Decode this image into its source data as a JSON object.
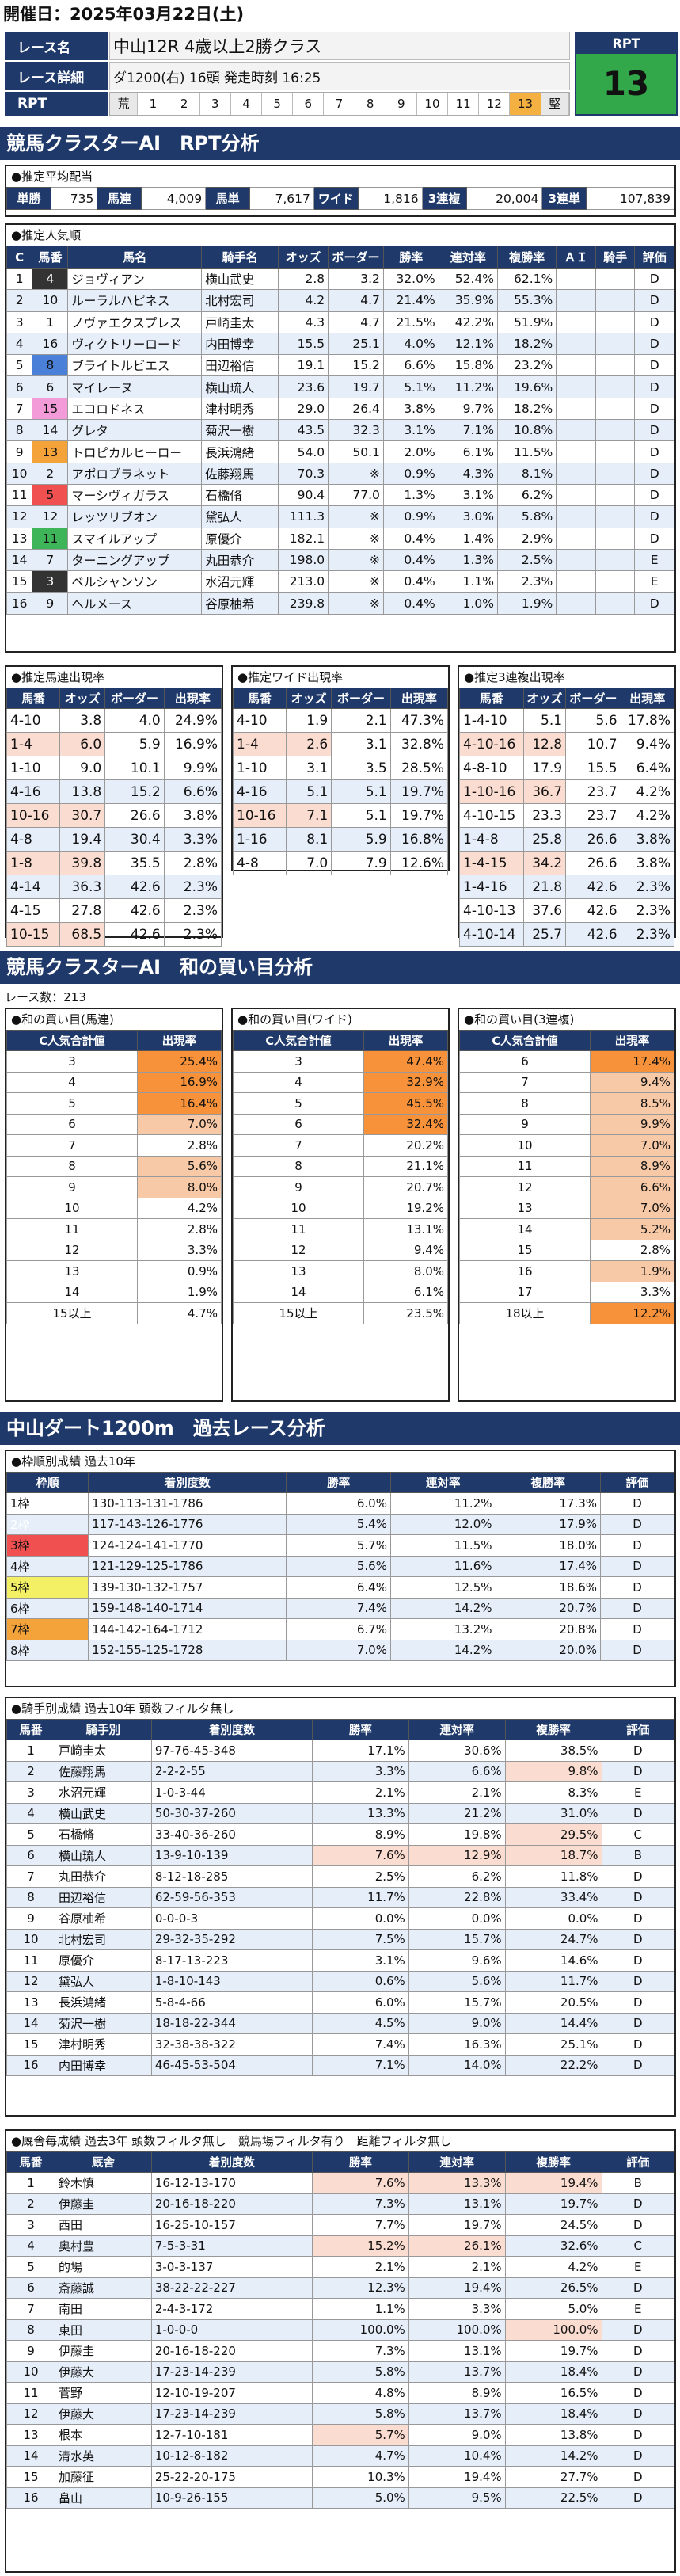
{
  "header": {
    "date": "開催日：2025年03月22日(土)"
  },
  "race": {
    "name_label": "レース名",
    "name": "中山12R 4歳以上2勝クラス",
    "detail_label": "レース詳細",
    "detail": "ダ1200(右)  16頭  発走時刻 16:25",
    "rpt_label": "RPT",
    "rpt_title": "RPT",
    "rpt_value": "13",
    "rpt_cells": [
      "荒",
      "1",
      "2",
      "3",
      "4",
      "5",
      "6",
      "7",
      "8",
      "9",
      "10",
      "11",
      "12",
      "13",
      "堅"
    ],
    "rpt_highlight": "13"
  },
  "banner1": "競馬クラスターAI　RPT分析",
  "payout": {
    "title": "●推定平均配当",
    "items": [
      [
        "単勝",
        "735"
      ],
      [
        "馬連",
        "4,009"
      ],
      [
        "馬単",
        "7,617"
      ],
      [
        "ワイド",
        "1,816"
      ],
      [
        "3連複",
        "20,004"
      ],
      [
        "3連単",
        "107,839"
      ]
    ]
  },
  "popularity": {
    "title": "●推定人気順",
    "headers": [
      "C",
      "馬番",
      "馬名",
      "騎手名",
      "オッズ",
      "ボーダー",
      "勝率",
      "連対率",
      "複勝率",
      "ＡＩ",
      "騎手",
      "評価"
    ],
    "rows": [
      [
        "1",
        "4",
        "ジョヴィアン",
        "横山武史",
        "2.8",
        "3.2",
        "32.0%",
        "52.4%",
        "62.1%",
        "",
        "",
        "D"
      ],
      [
        "2",
        "10",
        "ルーラルハピネス",
        "北村宏司",
        "4.2",
        "4.7",
        "21.4%",
        "35.9%",
        "55.3%",
        "",
        "",
        "D"
      ],
      [
        "3",
        "1",
        "ノヴァエクスプレス",
        "戸崎圭太",
        "4.3",
        "4.7",
        "21.5%",
        "42.2%",
        "51.9%",
        "",
        "",
        "D"
      ],
      [
        "4",
        "16",
        "ヴィクトリーロード",
        "内田博幸",
        "15.5",
        "25.1",
        "4.0%",
        "12.1%",
        "18.2%",
        "",
        "",
        "D"
      ],
      [
        "5",
        "8",
        "ブライトルビエス",
        "田辺裕信",
        "19.1",
        "15.2",
        "6.6%",
        "15.8%",
        "23.2%",
        "",
        "",
        "D"
      ],
      [
        "6",
        "6",
        "マイレーヌ",
        "横山琉人",
        "23.6",
        "19.7",
        "5.1%",
        "11.2%",
        "19.6%",
        "",
        "",
        "D"
      ],
      [
        "7",
        "15",
        "エコロドネス",
        "津村明秀",
        "29.0",
        "26.4",
        "3.8%",
        "9.7%",
        "18.2%",
        "",
        "",
        "D"
      ],
      [
        "8",
        "14",
        "グレタ",
        "菊沢一樹",
        "43.5",
        "32.3",
        "3.1%",
        "7.1%",
        "10.8%",
        "",
        "",
        "D"
      ],
      [
        "9",
        "13",
        "トロピカルヒーロー",
        "長浜鴻緒",
        "54.0",
        "50.1",
        "2.0%",
        "6.1%",
        "11.5%",
        "",
        "",
        "D"
      ],
      [
        "10",
        "2",
        "アポロブラネット",
        "佐藤翔馬",
        "70.3",
        "※",
        "0.9%",
        "4.3%",
        "8.1%",
        "",
        "",
        "D"
      ],
      [
        "11",
        "5",
        "マーシヴィガラス",
        "石橋脩",
        "90.4",
        "77.0",
        "1.3%",
        "3.1%",
        "6.2%",
        "",
        "",
        "D"
      ],
      [
        "12",
        "12",
        "レッツリブオン",
        "黛弘人",
        "111.3",
        "※",
        "0.9%",
        "3.0%",
        "5.8%",
        "",
        "",
        "D"
      ],
      [
        "13",
        "11",
        "スマイルアップ",
        "原優介",
        "182.1",
        "※",
        "0.4%",
        "1.4%",
        "2.9%",
        "",
        "",
        "D"
      ],
      [
        "14",
        "7",
        "ターニングアップ",
        "丸田恭介",
        "198.0",
        "※",
        "0.4%",
        "1.3%",
        "2.5%",
        "",
        "",
        "E"
      ],
      [
        "15",
        "3",
        "ベルシャンソン",
        "水沼元輝",
        "213.0",
        "※",
        "0.4%",
        "1.1%",
        "2.3%",
        "",
        "",
        "E"
      ],
      [
        "16",
        "9",
        "ヘルメース",
        "谷原柚希",
        "239.8",
        "※",
        "0.4%",
        "1.0%",
        "1.9%",
        "",
        "",
        "D"
      ]
    ]
  },
  "umaren": {
    "title": "●推定馬連出現率",
    "headers": [
      "馬番",
      "オッズ",
      "ボーダー",
      "出現率"
    ],
    "rows": [
      [
        "4-10",
        "3.8",
        "4.0",
        "24.9%"
      ],
      [
        "1-4",
        "6.0",
        "5.9",
        "16.9%"
      ],
      [
        "1-10",
        "9.0",
        "10.1",
        "9.9%"
      ],
      [
        "4-16",
        "13.8",
        "15.2",
        "6.6%"
      ],
      [
        "10-16",
        "30.7",
        "26.6",
        "3.8%"
      ],
      [
        "4-8",
        "19.4",
        "30.4",
        "3.3%"
      ],
      [
        "1-8",
        "39.8",
        "35.5",
        "2.8%"
      ],
      [
        "4-14",
        "36.3",
        "42.6",
        "2.3%"
      ],
      [
        "4-15",
        "27.8",
        "42.6",
        "2.3%"
      ],
      [
        "10-15",
        "68.5",
        "42.6",
        "2.3%"
      ]
    ]
  },
  "wide": {
    "title": "●推定ワイド出現率",
    "headers": [
      "馬番",
      "オッズ",
      "ボーダー",
      "出現率"
    ],
    "rows": [
      [
        "4-10",
        "1.9",
        "2.1",
        "47.3%"
      ],
      [
        "1-4",
        "2.6",
        "3.1",
        "32.8%"
      ],
      [
        "1-10",
        "3.1",
        "3.5",
        "28.5%"
      ],
      [
        "4-16",
        "5.1",
        "5.1",
        "19.7%"
      ],
      [
        "10-16",
        "7.1",
        "5.1",
        "19.7%"
      ],
      [
        "1-16",
        "8.1",
        "5.9",
        "16.8%"
      ],
      [
        "4-8",
        "7.0",
        "7.9",
        "12.6%"
      ]
    ]
  },
  "trio": {
    "title": "●推定3連複出現率",
    "headers": [
      "馬番",
      "オッズ",
      "ボーダー",
      "出現率"
    ],
    "rows": [
      [
        "1-4-10",
        "5.1",
        "5.6",
        "17.8%"
      ],
      [
        "4-10-16",
        "12.8",
        "10.7",
        "9.4%"
      ],
      [
        "4-8-10",
        "17.9",
        "15.5",
        "6.4%"
      ],
      [
        "1-10-16",
        "36.7",
        "23.7",
        "4.2%"
      ],
      [
        "4-10-15",
        "23.3",
        "23.7",
        "4.2%"
      ],
      [
        "1-4-8",
        "25.8",
        "26.6",
        "3.8%"
      ],
      [
        "1-4-15",
        "34.2",
        "26.6",
        "3.8%"
      ],
      [
        "1-4-16",
        "21.8",
        "42.6",
        "2.3%"
      ],
      [
        "4-10-13",
        "37.6",
        "42.6",
        "2.3%"
      ],
      [
        "4-10-14",
        "25.7",
        "42.6",
        "2.3%"
      ]
    ]
  },
  "banner2": "競馬クラスターAI　和の買い目分析",
  "race_count": "レース数：213",
  "sum_umaren": {
    "title": "●和の買い目(馬連)",
    "headers": [
      "C人気合計値",
      "出現率"
    ],
    "rows": [
      [
        "3",
        "25.4%"
      ],
      [
        "4",
        "16.9%"
      ],
      [
        "5",
        "16.4%"
      ],
      [
        "6",
        "7.0%"
      ],
      [
        "7",
        "2.8%"
      ],
      [
        "8",
        "5.6%"
      ],
      [
        "9",
        "8.0%"
      ],
      [
        "10",
        "4.2%"
      ],
      [
        "11",
        "2.8%"
      ],
      [
        "12",
        "3.3%"
      ],
      [
        "13",
        "0.9%"
      ],
      [
        "14",
        "1.9%"
      ],
      [
        "15以上",
        "4.7%"
      ]
    ]
  },
  "sum_wide": {
    "title": "●和の買い目(ワイド)",
    "headers": [
      "C人気合計値",
      "出現率"
    ],
    "rows": [
      [
        "3",
        "47.4%"
      ],
      [
        "4",
        "32.9%"
      ],
      [
        "5",
        "45.5%"
      ],
      [
        "6",
        "32.4%"
      ],
      [
        "7",
        "20.2%"
      ],
      [
        "8",
        "21.1%"
      ],
      [
        "9",
        "20.7%"
      ],
      [
        "10",
        "19.2%"
      ],
      [
        "11",
        "13.1%"
      ],
      [
        "12",
        "9.4%"
      ],
      [
        "13",
        "8.0%"
      ],
      [
        "14",
        "6.1%"
      ],
      [
        "15以上",
        "23.5%"
      ]
    ]
  },
  "sum_trio": {
    "title": "●和の買い目(3連複)",
    "headers": [
      "C人気合計値",
      "出現率"
    ],
    "rows": [
      [
        "6",
        "17.4%"
      ],
      [
        "7",
        "9.4%"
      ],
      [
        "8",
        "8.5%"
      ],
      [
        "9",
        "9.9%"
      ],
      [
        "10",
        "7.0%"
      ],
      [
        "11",
        "8.9%"
      ],
      [
        "12",
        "6.6%"
      ],
      [
        "13",
        "7.0%"
      ],
      [
        "14",
        "5.2%"
      ],
      [
        "15",
        "2.8%"
      ],
      [
        "16",
        "1.9%"
      ],
      [
        "17",
        "3.3%"
      ],
      [
        "18以上",
        "12.2%"
      ]
    ]
  },
  "banner3": "中山ダート1200m　過去レース分析",
  "waku": {
    "title": "●枠順別成績 過去10年",
    "headers": [
      "枠順",
      "着別度数",
      "勝率",
      "連対率",
      "複勝率",
      "評価"
    ],
    "rows": [
      [
        "1枠",
        "130-113-131-1786",
        "6.0%",
        "11.2%",
        "17.3%",
        "D"
      ],
      [
        "2枠",
        "117-143-126-1776",
        "5.4%",
        "12.0%",
        "17.9%",
        "D"
      ],
      [
        "3枠",
        "124-124-141-1770",
        "5.7%",
        "11.5%",
        "18.0%",
        "D"
      ],
      [
        "4枠",
        "121-129-125-1786",
        "5.6%",
        "11.6%",
        "17.4%",
        "D"
      ],
      [
        "5枠",
        "139-130-132-1757",
        "6.4%",
        "12.5%",
        "18.6%",
        "D"
      ],
      [
        "6枠",
        "159-148-140-1714",
        "7.4%",
        "14.2%",
        "20.7%",
        "D"
      ],
      [
        "7枠",
        "144-142-164-1712",
        "6.7%",
        "13.2%",
        "20.8%",
        "D"
      ],
      [
        "8枠",
        "152-155-125-1728",
        "7.0%",
        "14.2%",
        "20.0%",
        "D"
      ]
    ]
  },
  "jockey": {
    "title": "●騎手別成績 過去10年 頭数フィルタ無し",
    "headers": [
      "馬番",
      "騎手別",
      "着別度数",
      "勝率",
      "連対率",
      "複勝率",
      "評価"
    ],
    "rows": [
      [
        "1",
        "戸崎圭太",
        "97-76-45-348",
        "17.1%",
        "30.6%",
        "38.5%",
        "D"
      ],
      [
        "2",
        "佐藤翔馬",
        "2-2-2-55",
        "3.3%",
        "6.6%",
        "9.8%",
        "D"
      ],
      [
        "3",
        "水沼元輝",
        "1-0-3-44",
        "2.1%",
        "2.1%",
        "8.3%",
        "E"
      ],
      [
        "4",
        "横山武史",
        "50-30-37-260",
        "13.3%",
        "21.2%",
        "31.0%",
        "D"
      ],
      [
        "5",
        "石橋脩",
        "33-40-36-260",
        "8.9%",
        "19.8%",
        "29.5%",
        "C"
      ],
      [
        "6",
        "横山琉人",
        "13-9-10-139",
        "7.6%",
        "12.9%",
        "18.7%",
        "B"
      ],
      [
        "7",
        "丸田恭介",
        "8-12-18-285",
        "2.5%",
        "6.2%",
        "11.8%",
        "D"
      ],
      [
        "8",
        "田辺裕信",
        "62-59-56-353",
        "11.7%",
        "22.8%",
        "33.4%",
        "D"
      ],
      [
        "9",
        "谷原柚希",
        "0-0-0-3",
        "0.0%",
        "0.0%",
        "0.0%",
        "D"
      ],
      [
        "10",
        "北村宏司",
        "29-32-35-292",
        "7.5%",
        "15.7%",
        "24.7%",
        "D"
      ],
      [
        "11",
        "原優介",
        "8-17-13-223",
        "3.1%",
        "9.6%",
        "14.6%",
        "D"
      ],
      [
        "12",
        "黛弘人",
        "1-8-10-143",
        "0.6%",
        "5.6%",
        "11.7%",
        "D"
      ],
      [
        "13",
        "長浜鴻緒",
        "5-8-4-66",
        "6.0%",
        "15.7%",
        "20.5%",
        "D"
      ],
      [
        "14",
        "菊沢一樹",
        "18-18-22-344",
        "4.5%",
        "9.0%",
        "14.4%",
        "D"
      ],
      [
        "15",
        "津村明秀",
        "32-38-38-322",
        "7.4%",
        "16.3%",
        "25.1%",
        "D"
      ],
      [
        "16",
        "内田博幸",
        "46-45-53-504",
        "7.1%",
        "14.0%",
        "22.2%",
        "D"
      ]
    ]
  },
  "trainer": {
    "title": "●厩舎毎成績 過去3年 頭数フィルタ無し　競馬場フィルタ有り　距離フィルタ無し",
    "headers": [
      "馬番",
      "厩舎",
      "着別度数",
      "勝率",
      "連対率",
      "複勝率",
      "評価"
    ],
    "rows": [
      [
        "1",
        "鈴木慎",
        "16-12-13-170",
        "7.6%",
        "13.3%",
        "19.4%",
        "B"
      ],
      [
        "2",
        "伊藤圭",
        "20-16-18-220",
        "7.3%",
        "13.1%",
        "19.7%",
        "D"
      ],
      [
        "3",
        "西田",
        "16-25-10-157",
        "7.7%",
        "19.7%",
        "24.5%",
        "D"
      ],
      [
        "4",
        "奥村豊",
        "7-5-3-31",
        "15.2%",
        "26.1%",
        "32.6%",
        "C"
      ],
      [
        "5",
        "的場",
        "3-0-3-137",
        "2.1%",
        "2.1%",
        "4.2%",
        "E"
      ],
      [
        "6",
        "斎藤誠",
        "38-22-22-227",
        "12.3%",
        "19.4%",
        "26.5%",
        "D"
      ],
      [
        "7",
        "南田",
        "2-4-3-172",
        "1.1%",
        "3.3%",
        "5.0%",
        "E"
      ],
      [
        "8",
        "東田",
        "1-0-0-0",
        "100.0%",
        "100.0%",
        "100.0%",
        "D"
      ],
      [
        "9",
        "伊藤圭",
        "20-16-18-220",
        "7.3%",
        "13.1%",
        "19.7%",
        "D"
      ],
      [
        "10",
        "伊藤大",
        "17-23-14-239",
        "5.8%",
        "13.7%",
        "18.4%",
        "D"
      ],
      [
        "11",
        "菅野",
        "12-10-19-207",
        "4.8%",
        "8.9%",
        "16.5%",
        "D"
      ],
      [
        "12",
        "伊藤大",
        "17-23-14-239",
        "5.8%",
        "13.7%",
        "18.4%",
        "D"
      ],
      [
        "13",
        "根本",
        "12-7-10-181",
        "5.7%",
        "9.0%",
        "13.8%",
        "D"
      ],
      [
        "14",
        "清水英",
        "10-12-8-182",
        "4.7%",
        "10.4%",
        "14.2%",
        "D"
      ],
      [
        "15",
        "加藤征",
        "25-22-20-175",
        "10.3%",
        "19.4%",
        "27.7%",
        "D"
      ],
      [
        "16",
        "畠山",
        "10-9-26-155",
        "5.0%",
        "9.5%",
        "22.5%",
        "D"
      ]
    ]
  }
}
